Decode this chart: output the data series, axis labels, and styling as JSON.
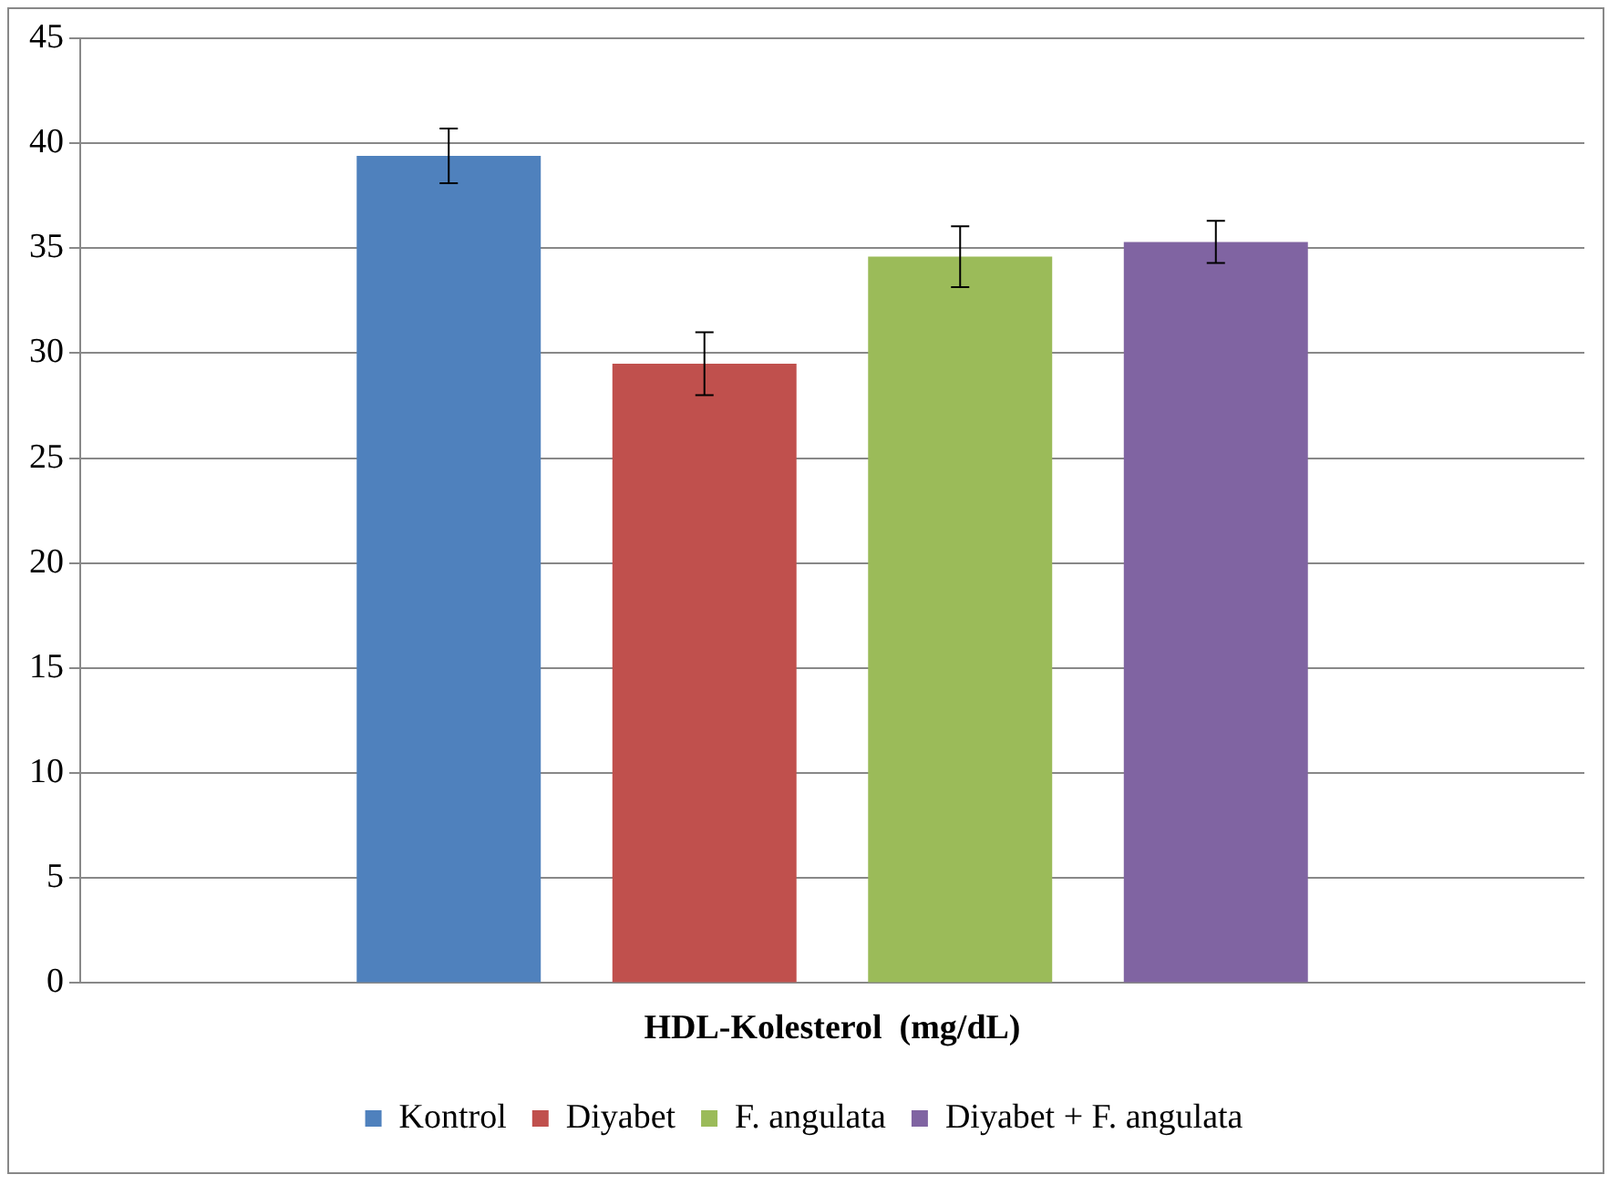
{
  "chart_data": {
    "type": "bar",
    "categories": [
      "HDL-Kolesterol  (mg/dL)"
    ],
    "series": [
      {
        "name": "Kontrol",
        "color": "#4f81bd",
        "values": [
          39.4
        ],
        "errors": [
          1.3
        ]
      },
      {
        "name": "Diyabet",
        "color": "#c0504d",
        "values": [
          29.5
        ],
        "errors": [
          1.5
        ]
      },
      {
        "name": "F. angulata",
        "color": "#9bbb59",
        "values": [
          34.6
        ],
        "errors": [
          1.45
        ]
      },
      {
        "name": "Diyabet + F. angulata",
        "color": "#8064a2",
        "values": [
          35.3
        ],
        "errors": [
          1.0
        ]
      }
    ],
    "ylim": [
      0,
      45
    ],
    "yticks": [
      0,
      5,
      10,
      15,
      20,
      25,
      30,
      35,
      40,
      45
    ],
    "grid": "y",
    "legend": "bottom"
  }
}
